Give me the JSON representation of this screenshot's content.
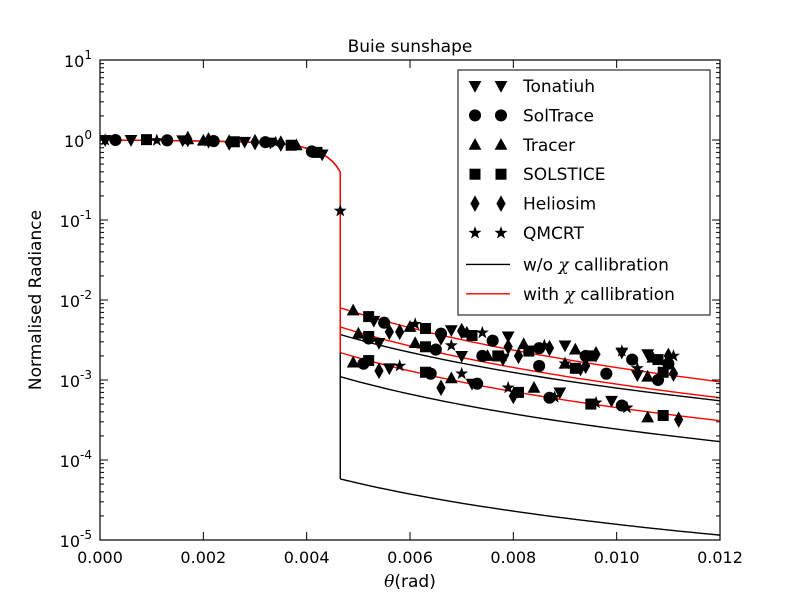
{
  "chart_data": {
    "type": "scatter",
    "title": "Buie sunshape",
    "xlabel": "θ(rad)",
    "ylabel": "Normalised Radiance",
    "xscale": "linear",
    "yscale": "log",
    "xlim": [
      0.0,
      0.012
    ],
    "ylim": [
      1e-05,
      10
    ],
    "grid": false,
    "legend_position": "top-right",
    "x_ticks": [
      "0.000",
      "0.002",
      "0.004",
      "0.006",
      "0.008",
      "0.010",
      "0.012"
    ],
    "y_ticks": [
      {
        "value": 1e-05,
        "base": "10",
        "exp": "-5"
      },
      {
        "value": 0.0001,
        "base": "10",
        "exp": "-4"
      },
      {
        "value": 0.001,
        "base": "10",
        "exp": "-3"
      },
      {
        "value": 0.01,
        "base": "10",
        "exp": "-2"
      },
      {
        "value": 0.1,
        "base": "10",
        "exp": "-1"
      },
      {
        "value": 1,
        "base": "10",
        "exp": "0"
      },
      {
        "value": 10,
        "base": "10",
        "exp": "1"
      }
    ],
    "theta_sun_edge": 0.00465,
    "solar_disk": [
      [
        0.0,
        1.0
      ],
      [
        0.0005,
        0.995
      ],
      [
        0.001,
        0.99
      ],
      [
        0.0015,
        0.98
      ],
      [
        0.002,
        0.97
      ],
      [
        0.0025,
        0.955
      ],
      [
        0.003,
        0.935
      ],
      [
        0.0033,
        0.91
      ],
      [
        0.0036,
        0.88
      ],
      [
        0.0039,
        0.82
      ],
      [
        0.0041,
        0.76
      ],
      [
        0.0043,
        0.67
      ],
      [
        0.0044,
        0.61
      ],
      [
        0.0045,
        0.54
      ],
      [
        0.00458,
        0.47
      ],
      [
        0.00465,
        0.4
      ]
    ],
    "edge_low": [
      0.00465,
      0.00465
    ],
    "red_edge": [
      0.4,
      0.0022
    ],
    "black_edge": [
      0.4,
      5.8e-05
    ],
    "circumsolar_curves": [
      {
        "name": "",
        "color": "#ff0000",
        "start_y": 0.008,
        "end_y": 0.00095
      },
      {
        "name": "",
        "color": "#000000",
        "start_y": 0.0037,
        "end_y": 0.00055
      },
      {
        "name": "",
        "color": "#ff0000",
        "start_y": 0.0046,
        "end_y": 0.0006
      },
      {
        "name": "",
        "color": "#000000",
        "start_y": 0.0011,
        "end_y": 0.00017
      },
      {
        "name": "",
        "color": "#ff0000",
        "start_y": 0.0022,
        "end_y": 0.00031
      },
      {
        "name": "",
        "color": "#000000",
        "start_y": 5.8e-05,
        "end_y": 1.15e-05
      }
    ],
    "series": [
      {
        "name": "Tonatiuh",
        "marker": "triangle-down",
        "points": [
          [
            0.0001,
            1.0
          ],
          [
            0.0006,
            1.0
          ],
          [
            0.0016,
            0.99
          ],
          [
            0.0028,
            0.95
          ],
          [
            0.0033,
            0.93
          ],
          [
            0.0043,
            0.66
          ],
          [
            0.0053,
            0.0055
          ],
          [
            0.0068,
            0.0042
          ],
          [
            0.0079,
            0.0035
          ],
          [
            0.009,
            0.0027
          ],
          [
            0.0101,
            0.0022
          ],
          [
            0.0106,
            0.0021
          ],
          [
            0.0054,
            0.0029
          ],
          [
            0.007,
            0.002
          ],
          [
            0.0078,
            0.0018
          ],
          [
            0.0093,
            0.00135
          ],
          [
            0.0104,
            0.00115
          ],
          [
            0.0056,
            0.0014
          ],
          [
            0.0072,
            0.0009
          ],
          [
            0.0089,
            0.0007
          ],
          [
            0.0099,
            0.00055
          ]
        ]
      },
      {
        "name": "SolTrace",
        "marker": "circle",
        "points": [
          [
            0.0003,
            1.0
          ],
          [
            0.0013,
            0.99
          ],
          [
            0.0022,
            0.97
          ],
          [
            0.0032,
            0.94
          ],
          [
            0.0041,
            0.72
          ],
          [
            0.0055,
            0.0052
          ],
          [
            0.0066,
            0.0038
          ],
          [
            0.0076,
            0.0031
          ],
          [
            0.0085,
            0.0025
          ],
          [
            0.0094,
            0.002
          ],
          [
            0.0103,
            0.0018
          ],
          [
            0.011,
            0.0016
          ],
          [
            0.0052,
            0.0033
          ],
          [
            0.0065,
            0.0024
          ],
          [
            0.0074,
            0.002
          ],
          [
            0.0085,
            0.0015
          ],
          [
            0.0098,
            0.0012
          ],
          [
            0.0108,
            0.001
          ],
          [
            0.0051,
            0.0016
          ],
          [
            0.0064,
            0.0012
          ],
          [
            0.0073,
            0.0009
          ],
          [
            0.0087,
            0.0006
          ],
          [
            0.0101,
            0.00048
          ]
        ]
      },
      {
        "name": "Tracer",
        "marker": "triangle-up",
        "points": [
          [
            0.0017,
            1.02
          ],
          [
            0.002,
            0.98
          ],
          [
            0.0038,
            0.86
          ],
          [
            0.0049,
            0.0074
          ],
          [
            0.006,
            0.0046
          ],
          [
            0.0071,
            0.0039
          ],
          [
            0.0082,
            0.0028
          ],
          [
            0.0092,
            0.0024
          ],
          [
            0.0107,
            0.0019
          ],
          [
            0.005,
            0.0038
          ],
          [
            0.0061,
            0.0029
          ],
          [
            0.0075,
            0.002
          ],
          [
            0.009,
            0.0016
          ],
          [
            0.0106,
            0.0011
          ],
          [
            0.0049,
            0.00165
          ],
          [
            0.0068,
            0.00105
          ],
          [
            0.0084,
            0.0008
          ],
          [
            0.0106,
            0.00034
          ]
        ]
      },
      {
        "name": "SOLSTICE",
        "marker": "square",
        "points": [
          [
            0.0009,
            1.01
          ],
          [
            0.0026,
            0.95
          ],
          [
            0.0037,
            0.86
          ],
          [
            0.0042,
            0.7
          ],
          [
            0.0052,
            0.0062
          ],
          [
            0.0063,
            0.0044
          ],
          [
            0.0072,
            0.0036
          ],
          [
            0.0083,
            0.0023
          ],
          [
            0.0095,
            0.002
          ],
          [
            0.0108,
            0.0018
          ],
          [
            0.0052,
            0.0035
          ],
          [
            0.0063,
            0.0026
          ],
          [
            0.0077,
            0.002
          ],
          [
            0.0092,
            0.0014
          ],
          [
            0.0109,
            0.00125
          ],
          [
            0.0052,
            0.00175
          ],
          [
            0.0063,
            0.00125
          ],
          [
            0.0081,
            0.0007
          ],
          [
            0.0095,
            0.0005
          ],
          [
            0.0109,
            0.00036
          ]
        ]
      },
      {
        "name": "Heliosim",
        "marker": "diamond",
        "points": [
          [
            0.0017,
            1.03
          ],
          [
            0.0021,
            0.99
          ],
          [
            0.0025,
            0.93
          ],
          [
            0.003,
            0.94
          ],
          [
            0.0035,
            0.9
          ],
          [
            0.0058,
            0.004
          ],
          [
            0.007,
            0.0041
          ],
          [
            0.0079,
            0.0026
          ],
          [
            0.0087,
            0.0025
          ],
          [
            0.0096,
            0.0021
          ],
          [
            0.011,
            0.002
          ],
          [
            0.0056,
            0.004
          ],
          [
            0.0066,
            0.0034
          ],
          [
            0.0081,
            0.002
          ],
          [
            0.0094,
            0.0015
          ],
          [
            0.0111,
            0.0012
          ],
          [
            0.0054,
            0.0013
          ],
          [
            0.0066,
            0.0008
          ],
          [
            0.008,
            0.00063
          ],
          [
            0.0112,
            0.00032
          ]
        ]
      },
      {
        "name": "QMCRT",
        "marker": "star",
        "points": [
          [
            0.0001,
            1.0
          ],
          [
            0.0011,
            0.99
          ],
          [
            0.0021,
            0.97
          ],
          [
            0.0034,
            0.93
          ],
          [
            0.00465,
            0.13
          ],
          [
            0.0061,
            0.005
          ],
          [
            0.0074,
            0.0039
          ],
          [
            0.0086,
            0.0027
          ],
          [
            0.0101,
            0.0023
          ],
          [
            0.0111,
            0.002
          ],
          [
            0.0068,
            0.0027
          ],
          [
            0.0078,
            0.002
          ],
          [
            0.009,
            0.0016
          ],
          [
            0.0104,
            0.0014
          ],
          [
            0.0058,
            0.0015
          ],
          [
            0.007,
            0.0012
          ],
          [
            0.0079,
            0.0008
          ],
          [
            0.0088,
            0.00061
          ],
          [
            0.0096,
            0.00052
          ],
          [
            0.0102,
            0.00045
          ]
        ]
      }
    ],
    "legend": [
      {
        "label": "Tonatiuh",
        "kind": "marker",
        "marker": "triangle-down"
      },
      {
        "label": "SolTrace",
        "kind": "marker",
        "marker": "circle"
      },
      {
        "label": "Tracer",
        "kind": "marker",
        "marker": "triangle-up"
      },
      {
        "label": "SOLSTICE",
        "kind": "marker",
        "marker": "square"
      },
      {
        "label": "Heliosim",
        "kind": "marker",
        "marker": "diamond"
      },
      {
        "label": "QMCRT",
        "kind": "marker",
        "marker": "star"
      },
      {
        "label_parts": [
          "w/o ",
          "χ",
          " callibration"
        ],
        "kind": "line",
        "color": "#000000"
      },
      {
        "label_parts": [
          "with ",
          "χ",
          " callibration"
        ],
        "kind": "line",
        "color": "#ff0000"
      }
    ]
  }
}
